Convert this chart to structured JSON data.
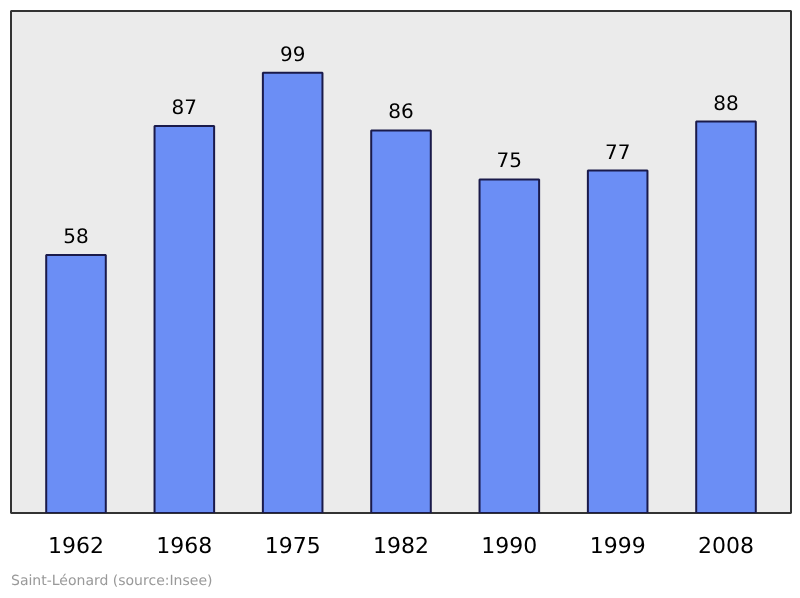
{
  "chart_data": {
    "type": "bar",
    "categories": [
      "1962",
      "1968",
      "1975",
      "1982",
      "1990",
      "1999",
      "2008"
    ],
    "values": [
      58,
      87,
      99,
      86,
      75,
      77,
      88
    ],
    "color": "#6b8ef5",
    "data_labels": true,
    "grid": false,
    "annotations": [
      "Saint-Léonard   (source:Insee)"
    ]
  }
}
